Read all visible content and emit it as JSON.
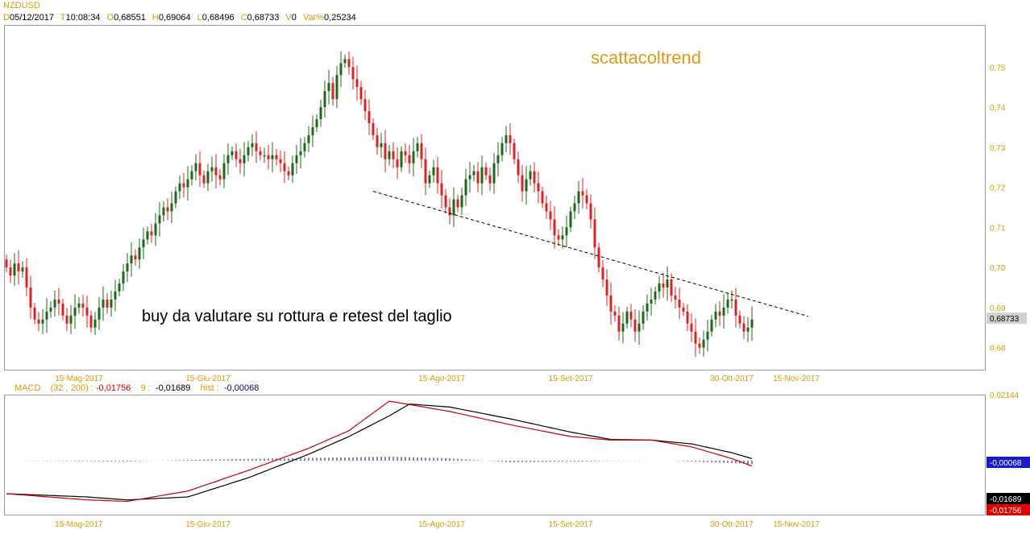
{
  "header": {
    "symbol": "NZDUSD",
    "date_label": "D",
    "date": "05/12/2017",
    "time_label": "T",
    "time": "10:08:34",
    "open_label": "O",
    "open": "0,68551",
    "high_label": "H",
    "high": "0,69064",
    "low_label": "L",
    "low": "0,68496",
    "close_label": "C",
    "close": "0,68733",
    "volume_label": "V",
    "volume": "0",
    "var_label": "Var%",
    "var": "0,25234"
  },
  "annotations": {
    "brand": "scattacoltrend",
    "note": "buy da valutare su rottura e retest del taglio"
  },
  "colors": {
    "up": "#1a6b1a",
    "down": "#e02020",
    "axis_label": "#d99a00",
    "macd_line": "#000000",
    "signal_line": "#cc0000",
    "histogram": "#00009a",
    "price_badge": "#d0d0d0"
  },
  "chart_data": [
    {
      "type": "candlestick",
      "title": "NZDUSD",
      "timeframe": "daily",
      "x_tick_labels": [
        "15-Mag-2017",
        "15-Giu-2017",
        "15-Ago-2017",
        "15-Set-2017",
        "30-Ott-2017",
        "15-Nov-2017"
      ],
      "y_tick_labels": [
        "0,75",
        "0,74",
        "0,73",
        "0,72",
        "0,71",
        "0,70",
        "0,69",
        "0,68"
      ],
      "y_ticks": [
        0.75,
        0.74,
        0.73,
        0.72,
        0.71,
        0.7,
        0.69,
        0.68
      ],
      "ylim": [
        0.6745,
        0.7605
      ],
      "current_price_label": "0,68733",
      "current_price": 0.68733,
      "trendline": {
        "style": "dashed",
        "from": {
          "bar": 91,
          "price": 0.719
        },
        "to": {
          "bar": 199,
          "price": 0.6878
        }
      },
      "closes": [
        0.7,
        0.698,
        0.701,
        0.699,
        0.7,
        0.695,
        0.69,
        0.687,
        0.686,
        0.687,
        0.689,
        0.69,
        0.692,
        0.691,
        0.688,
        0.686,
        0.688,
        0.69,
        0.691,
        0.69,
        0.688,
        0.685,
        0.687,
        0.69,
        0.692,
        0.69,
        0.692,
        0.694,
        0.696,
        0.699,
        0.701,
        0.703,
        0.702,
        0.705,
        0.707,
        0.709,
        0.708,
        0.711,
        0.713,
        0.715,
        0.714,
        0.716,
        0.719,
        0.721,
        0.72,
        0.722,
        0.724,
        0.726,
        0.723,
        0.721,
        0.724,
        0.725,
        0.723,
        0.722,
        0.726,
        0.728,
        0.729,
        0.727,
        0.726,
        0.728,
        0.73,
        0.731,
        0.729,
        0.728,
        0.728,
        0.727,
        0.728,
        0.727,
        0.726,
        0.724,
        0.723,
        0.726,
        0.728,
        0.729,
        0.731,
        0.733,
        0.735,
        0.737,
        0.74,
        0.744,
        0.746,
        0.742,
        0.748,
        0.751,
        0.752,
        0.75,
        0.747,
        0.745,
        0.742,
        0.739,
        0.736,
        0.733,
        0.73,
        0.731,
        0.727,
        0.729,
        0.727,
        0.725,
        0.729,
        0.728,
        0.726,
        0.729,
        0.731,
        0.727,
        0.721,
        0.723,
        0.725,
        0.721,
        0.718,
        0.715,
        0.713,
        0.717,
        0.715,
        0.718,
        0.722,
        0.723,
        0.724,
        0.721,
        0.725,
        0.723,
        0.721,
        0.726,
        0.728,
        0.731,
        0.733,
        0.731,
        0.727,
        0.723,
        0.719,
        0.722,
        0.724,
        0.721,
        0.719,
        0.716,
        0.714,
        0.712,
        0.708,
        0.707,
        0.708,
        0.71,
        0.714,
        0.716,
        0.719,
        0.718,
        0.716,
        0.712,
        0.705,
        0.7,
        0.697,
        0.693,
        0.689,
        0.688,
        0.684,
        0.686,
        0.689,
        0.687,
        0.684,
        0.686,
        0.689,
        0.691,
        0.692,
        0.694,
        0.696,
        0.695,
        0.697,
        0.693,
        0.692,
        0.69,
        0.689,
        0.686,
        0.684,
        0.681,
        0.68,
        0.682,
        0.684,
        0.687,
        0.689,
        0.688,
        0.69,
        0.692,
        0.692,
        0.688,
        0.686,
        0.684,
        0.685,
        0.687
      ],
      "intervals": [
        {
          "label": "",
          "values": []
        }
      ]
    },
    {
      "type": "line",
      "title": "MACD",
      "params_label": "(32 , 200) :",
      "x_tick_labels": [
        "15-Mag-2017",
        "15-Giu-2017",
        "15-Ago-2017",
        "15-Set-2017",
        "30-Ott-2017",
        "15-Nov-2017"
      ],
      "y_tick_labels": [
        "0,02144"
      ],
      "ylim": [
        -0.0185,
        0.0222
      ],
      "series": [
        {
          "name": "MACD",
          "value_label": "-0,01756",
          "current": -0.01756,
          "anchors": [
            [
              0,
              -0.0114
            ],
            [
              20,
              -0.0135
            ],
            [
              30,
              -0.014
            ],
            [
              45,
              -0.0105
            ],
            [
              60,
              -0.0035
            ],
            [
              75,
              0.004
            ],
            [
              85,
              0.01
            ],
            [
              95,
              0.02
            ],
            [
              110,
              0.0165
            ],
            [
              125,
              0.012
            ],
            [
              140,
              0.008
            ],
            [
              150,
              0.0068
            ],
            [
              160,
              0.0068
            ],
            [
              170,
              0.0045
            ],
            [
              180,
              0.0005
            ],
            [
              190,
              -0.0045
            ],
            [
              200,
              -0.0105
            ],
            [
              210,
              -0.015
            ],
            [
              222,
              -0.0175
            ]
          ]
        },
        {
          "name": "9",
          "value_label": "-0,01689",
          "current": -0.01689,
          "anchors": [
            [
              0,
              -0.0114
            ],
            [
              20,
              -0.0125
            ],
            [
              30,
              -0.0135
            ],
            [
              45,
              -0.0125
            ],
            [
              60,
              -0.006
            ],
            [
              75,
              0.002
            ],
            [
              85,
              0.008
            ],
            [
              95,
              0.015
            ],
            [
              100,
              0.019
            ],
            [
              110,
              0.018
            ],
            [
              125,
              0.014
            ],
            [
              140,
              0.0095
            ],
            [
              150,
              0.007
            ],
            [
              160,
              0.0068
            ],
            [
              170,
              0.0055
            ],
            [
              180,
              0.0025
            ],
            [
              190,
              -0.0015
            ],
            [
              200,
              -0.007
            ],
            [
              210,
              -0.013
            ],
            [
              222,
              -0.0169
            ]
          ]
        },
        {
          "name": "hist",
          "value_label": "-0,00068",
          "current": -0.00068,
          "anchors": [
            [
              0,
              0.0
            ],
            [
              30,
              -0.0005
            ],
            [
              45,
              0.0005
            ],
            [
              70,
              0.0015
            ],
            [
              95,
              0.0025
            ],
            [
              110,
              0.0015
            ],
            [
              125,
              -0.001
            ],
            [
              150,
              -0.0002
            ],
            [
              165,
              0.0
            ],
            [
              180,
              -0.0015
            ],
            [
              195,
              -0.0035
            ],
            [
              210,
              -0.0025
            ],
            [
              222,
              -0.0007
            ]
          ]
        }
      ]
    }
  ]
}
